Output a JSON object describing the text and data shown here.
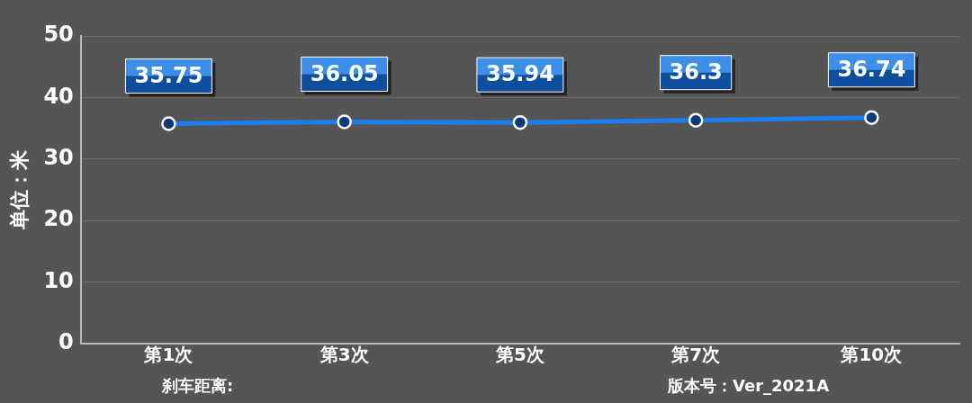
{
  "chart_data": {
    "type": "line",
    "ylabel": "单位：米",
    "categories": [
      "第1次",
      "第3次",
      "第5次",
      "第7次",
      "第10次"
    ],
    "series": [
      {
        "color": "#1a7ff0",
        "values": [
          35.75,
          36.05,
          35.94,
          36.3,
          36.74
        ]
      }
    ],
    "ylim": [
      0,
      50
    ],
    "yticks": [
      0,
      10,
      20,
      30,
      40,
      50
    ],
    "grid": "y",
    "legend": false,
    "marker": "circle",
    "line_style": "solid",
    "data_labels": true,
    "annotations": [
      "刹车距离:",
      "版本号：Ver_2021A"
    ]
  }
}
